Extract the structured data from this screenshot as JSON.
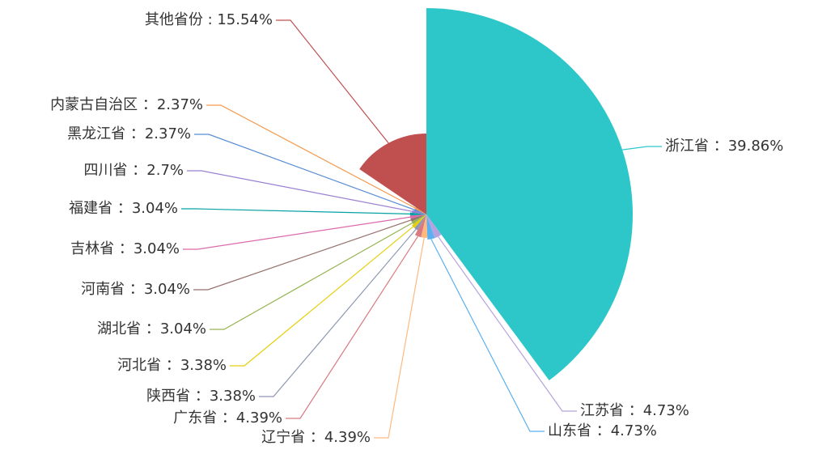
{
  "chart_data": {
    "type": "pie",
    "rose": "radius",
    "categories": [
      "浙江省",
      "江苏省",
      "山东省",
      "辽宁省",
      "广东省",
      "陕西省",
      "河北省",
      "湖北省",
      "河南省",
      "吉林省",
      "福建省",
      "四川省",
      "黑龙江省",
      "内蒙古自治区",
      "其他省份"
    ],
    "values": [
      39.86,
      4.73,
      4.73,
      4.39,
      4.39,
      3.38,
      3.38,
      3.04,
      3.04,
      3.04,
      3.04,
      2.7,
      2.37,
      2.37,
      15.54
    ],
    "labels": [
      "浙江省 ：39.86%",
      "江苏省 ：4.73%",
      "山东省 ：4.73%",
      "辽宁省 ：4.39%",
      "广东省 ：4.39%",
      "陕西省 ：3.38%",
      "河北省 ：3.38%",
      "湖北省 ：3.04%",
      "河南省 ：3.04%",
      "吉林省 ：3.04%",
      "福建省 ：3.04%",
      "四川省 ：2.7%",
      "黑龙江省 ：2.37%",
      "内蒙古自治区 ：2.37%",
      "其他省份 : 15.54%"
    ],
    "colors": [
      "#2ec7c9",
      "#b6a2de",
      "#5ab1ef",
      "#ffb980",
      "#d87a80",
      "#8d98b3",
      "#e5cf0d",
      "#97b552",
      "#95706d",
      "#dc69aa",
      "#07a2a4",
      "#9a7fd1",
      "#588dd5",
      "#f5994e",
      "#c05050"
    ]
  }
}
